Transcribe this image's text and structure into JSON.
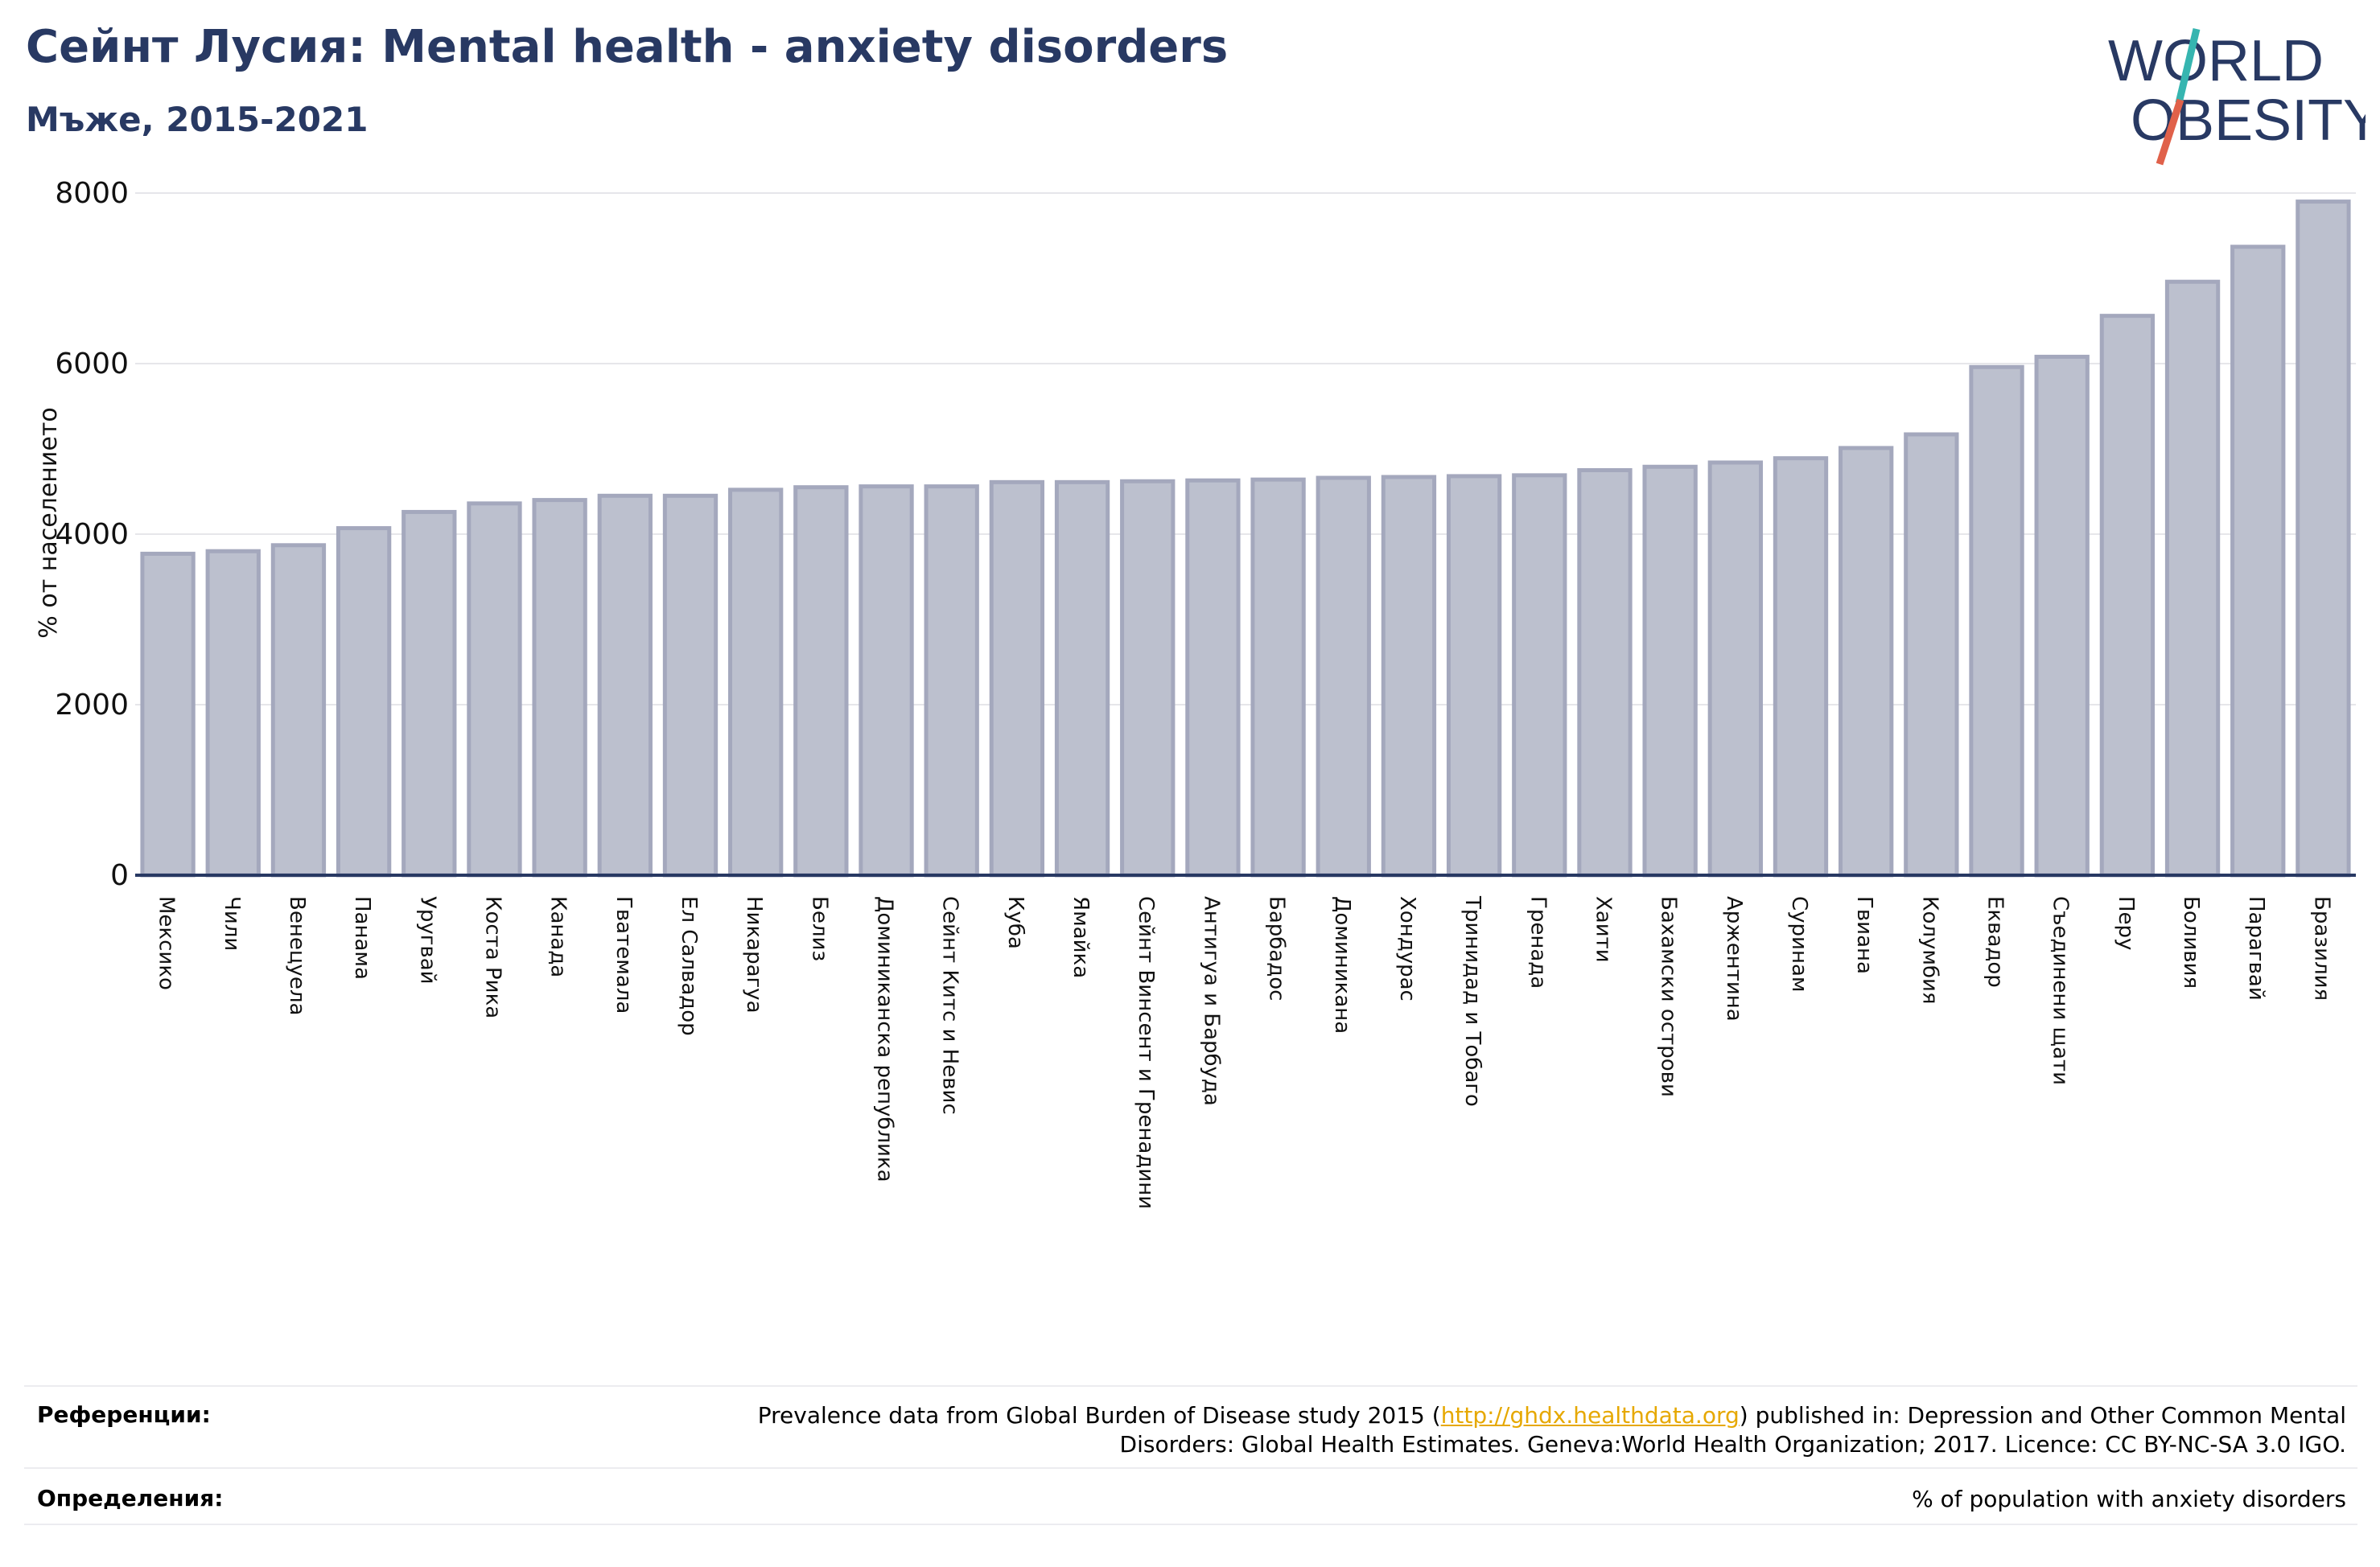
{
  "header": {
    "title": "Сейнт Лусия: Mental health - anxiety disorders",
    "subtitle": "Мъже, 2015-2021"
  },
  "logo": {
    "line1": "WORLD",
    "line2": "OBESITY",
    "colors": {
      "text": "#283963",
      "slash_top": "#36b5b0",
      "slash_bottom": "#e0614a"
    }
  },
  "chart_data": {
    "type": "bar",
    "title": "Сейнт Лусия: Mental health - anxiety disorders",
    "subtitle": "Мъже, 2015-2021",
    "ylabel": "% от населението",
    "xlabel": "",
    "ylim": [
      0,
      8000
    ],
    "yticks": [
      0,
      2000,
      4000,
      6000,
      8000
    ],
    "grid": true,
    "bar_color": "#bcc0ce",
    "bar_edge_color": "#a4a8bd",
    "categories": [
      "Мексико",
      "Чили",
      "Венецуела",
      "Панама",
      "Уругвай",
      "Коста Рика",
      "Канада",
      "Гватемала",
      "Ел Салвадор",
      "Никарагуа",
      "Белиз",
      "Доминиканска република",
      "Сейнт Китс и Невис",
      "Куба",
      "Ямайка",
      "Сейнт Винсент и Гренадини",
      "Антигуа и Барбуда",
      "Барбадос",
      "Доминикана",
      "Хондурас",
      "Тринидад и Тобаго",
      "Гренада",
      "Хаити",
      "Бахамски острови",
      "Аржентина",
      "Суринам",
      "Гвиана",
      "Колумбия",
      "Еквадор",
      "Съединени щати",
      "Перу",
      "Боливия",
      "Парагвай",
      "Бразилия"
    ],
    "values": [
      3770,
      3800,
      3870,
      4070,
      4260,
      4360,
      4400,
      4450,
      4450,
      4520,
      4550,
      4560,
      4560,
      4610,
      4610,
      4620,
      4630,
      4640,
      4660,
      4670,
      4680,
      4690,
      4750,
      4790,
      4840,
      4890,
      5010,
      5170,
      5960,
      6080,
      6560,
      6960,
      7370,
      7900
    ]
  },
  "footer": {
    "references_label": "Референции:",
    "references_text_1": "Prevalence data from Global Burden of Disease study 2015 (",
    "references_link": "http://ghdx.healthdata.org",
    "references_text_2": ") published in: Depression and Other Common Mental",
    "references_text_3": "Disorders: Global Health Estimates. Geneva:World Health Organization; 2017. Licence: CC BY-NC-SA 3.0 IGO.",
    "definitions_label": "Определения:",
    "definitions_text": "% of population with anxiety disorders"
  }
}
